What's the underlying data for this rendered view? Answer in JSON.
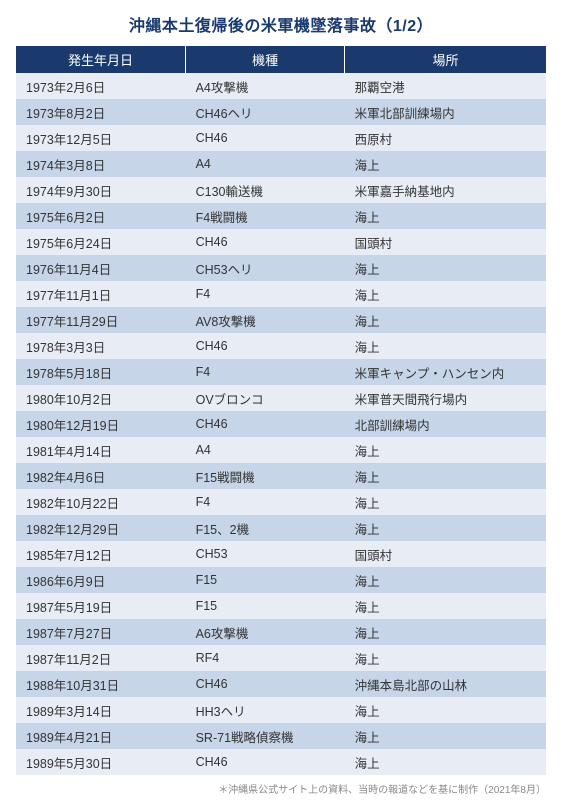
{
  "title": "沖縄本土復帰後の米軍機墜落事故（1/2）",
  "columns": [
    "発生年月日",
    "機種",
    "場所"
  ],
  "rows": [
    [
      "1973年2月6日",
      "A4攻撃機",
      "那覇空港"
    ],
    [
      "1973年8月2日",
      "CH46ヘリ",
      "米軍北部訓練場内"
    ],
    [
      "1973年12月5日",
      "CH46",
      "西原村"
    ],
    [
      "1974年3月8日",
      "A4",
      "海上"
    ],
    [
      "1974年9月30日",
      "C130輸送機",
      "米軍嘉手納基地内"
    ],
    [
      "1975年6月2日",
      "F4戦闘機",
      "海上"
    ],
    [
      "1975年6月24日",
      "CH46",
      "国頭村"
    ],
    [
      "1976年11月4日",
      "CH53ヘリ",
      "海上"
    ],
    [
      "1977年11月1日",
      "F4",
      "海上"
    ],
    [
      "1977年11月29日",
      "AV8攻撃機",
      "海上"
    ],
    [
      "1978年3月3日",
      "CH46",
      "海上"
    ],
    [
      "1978年5月18日",
      "F4",
      "米軍キャンプ・ハンセン内"
    ],
    [
      "1980年10月2日",
      "OVブロンコ",
      "米軍普天間飛行場内"
    ],
    [
      "1980年12月19日",
      "CH46",
      "北部訓練場内"
    ],
    [
      "1981年4月14日",
      "A4",
      "海上"
    ],
    [
      "1982年4月6日",
      "F15戦闘機",
      "海上"
    ],
    [
      "1982年10月22日",
      "F4",
      "海上"
    ],
    [
      "1982年12月29日",
      "F15、2機",
      "海上"
    ],
    [
      "1985年7月12日",
      "CH53",
      "国頭村"
    ],
    [
      "1986年6月9日",
      "F15",
      "海上"
    ],
    [
      "1987年5月19日",
      "F15",
      "海上"
    ],
    [
      "1987年7月27日",
      "A6攻撃機",
      "海上"
    ],
    [
      "1987年11月2日",
      "RF4",
      "海上"
    ],
    [
      "1988年10月31日",
      "CH46",
      "沖縄本島北部の山林"
    ],
    [
      "1989年3月14日",
      "HH3ヘリ",
      "海上"
    ],
    [
      "1989年4月21日",
      "SR-71戦略偵察機",
      "海上"
    ],
    [
      "1989年5月30日",
      "CH46",
      "海上"
    ]
  ],
  "footnote": "＊沖縄県公式サイト上の資料、当時の報道などを基に制作（2021年8月）",
  "colors": {
    "title_color": "#1a3a6e",
    "header_bg": "#1a3a6e",
    "header_text": "#ffffff",
    "row_even_bg": "#e8edf5",
    "row_odd_bg": "#c7d5e8",
    "cell_text": "#333333",
    "footnote_color": "#888888",
    "page_bg": "#ffffff"
  },
  "typography": {
    "title_fontsize": 16,
    "header_fontsize": 13,
    "cell_fontsize": 12.5,
    "footnote_fontsize": 10
  }
}
